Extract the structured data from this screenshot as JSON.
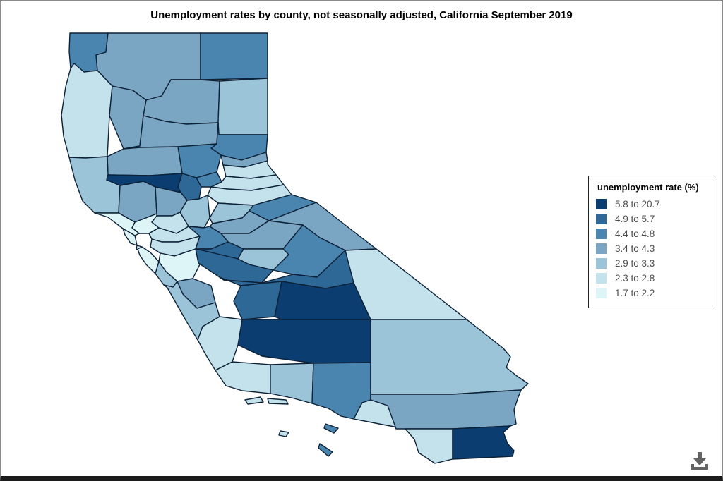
{
  "title": "Unemployment rates by county, not seasonally adjusted, California September 2019",
  "legend": {
    "title": "unemployment rate (%)",
    "items": [
      {
        "label": "5.8 to 20.7",
        "color": "#0b3d70"
      },
      {
        "label": "4.9 to 5.7",
        "color": "#2d6896"
      },
      {
        "label": "4.4 to 4.8",
        "color": "#4a85b0"
      },
      {
        "label": "3.4 to 4.3",
        "color": "#7aa6c4"
      },
      {
        "label": "2.9 to 3.3",
        "color": "#9cc4d8"
      },
      {
        "label": "2.3 to 2.8",
        "color": "#c3e2ec"
      },
      {
        "label": "1.7 to 2.2",
        "color": "#def5f8"
      }
    ]
  },
  "download": {
    "tooltip": "Download",
    "color": "#636363"
  },
  "chart_data": {
    "type": "choropleth",
    "title": "Unemployment rates by county, not seasonally adjusted, California September 2019",
    "region": "California counties",
    "metric": "unemployment rate (%)",
    "legend_position": "right",
    "bins": [
      "5.8 to 20.7",
      "4.9 to 5.7",
      "4.4 to 4.8",
      "3.4 to 4.3",
      "2.9 to 3.3",
      "2.3 to 2.8",
      "1.7 to 2.2"
    ],
    "counties": [
      {
        "id": "del_norte",
        "name": "Del Norte",
        "bin": 2
      },
      {
        "id": "siskiyou",
        "name": "Siskiyou",
        "bin": 3
      },
      {
        "id": "modoc",
        "name": "Modoc",
        "bin": 2
      },
      {
        "id": "humboldt",
        "name": "Humboldt",
        "bin": 5
      },
      {
        "id": "trinity",
        "name": "Trinity",
        "bin": 3
      },
      {
        "id": "shasta",
        "name": "Shasta",
        "bin": 3
      },
      {
        "id": "lassen",
        "name": "Lassen",
        "bin": 4
      },
      {
        "id": "tehama",
        "name": "Tehama",
        "bin": 3
      },
      {
        "id": "plumas",
        "name": "Plumas",
        "bin": 2
      },
      {
        "id": "butte",
        "name": "Butte",
        "bin": 2
      },
      {
        "id": "glenn",
        "name": "Glenn",
        "bin": 3
      },
      {
        "id": "mendocino",
        "name": "Mendocino",
        "bin": 4
      },
      {
        "id": "lake",
        "name": "Lake",
        "bin": 3
      },
      {
        "id": "colusa",
        "name": "Colusa",
        "bin": 0
      },
      {
        "id": "yuba",
        "name": "Yuba",
        "bin": 2
      },
      {
        "id": "sierra",
        "name": "Sierra",
        "bin": 3
      },
      {
        "id": "nevada",
        "name": "Nevada",
        "bin": 5
      },
      {
        "id": "placer",
        "name": "Placer",
        "bin": 5
      },
      {
        "id": "el_dorado",
        "name": "El Dorado",
        "bin": 5
      },
      {
        "id": "sutter",
        "name": "Sutter",
        "bin": 1
      },
      {
        "id": "yolo",
        "name": "Yolo",
        "bin": 3
      },
      {
        "id": "sacramento",
        "name": "Sacramento",
        "bin": 4
      },
      {
        "id": "amador",
        "name": "Amador",
        "bin": 4
      },
      {
        "id": "alpine",
        "name": "Alpine",
        "bin": 2
      },
      {
        "id": "calaveras",
        "name": "Calaveras",
        "bin": 3
      },
      {
        "id": "tuolumne",
        "name": "Tuolumne",
        "bin": 3
      },
      {
        "id": "mono",
        "name": "Mono",
        "bin": 3
      },
      {
        "id": "napa",
        "name": "Napa",
        "bin": 6
      },
      {
        "id": "solano",
        "name": "Solano",
        "bin": 5
      },
      {
        "id": "sonoma",
        "name": "Sonoma",
        "bin": 6
      },
      {
        "id": "marin",
        "name": "Marin",
        "bin": 6
      },
      {
        "id": "contra_costa",
        "name": "Contra Costa",
        "bin": 5
      },
      {
        "id": "san_francisco",
        "name": "San Francisco",
        "bin": 6
      },
      {
        "id": "san_mateo",
        "name": "San Mateo",
        "bin": 6
      },
      {
        "id": "alameda",
        "name": "Alameda",
        "bin": 5
      },
      {
        "id": "santa_clara",
        "name": "Santa Clara",
        "bin": 6
      },
      {
        "id": "santa_cruz",
        "name": "Santa Cruz",
        "bin": 4
      },
      {
        "id": "san_joaquin",
        "name": "San Joaquin",
        "bin": 2
      },
      {
        "id": "stanislaus",
        "name": "Stanislaus",
        "bin": 1
      },
      {
        "id": "merced",
        "name": "Merced",
        "bin": 1
      },
      {
        "id": "mariposa",
        "name": "Mariposa",
        "bin": 4
      },
      {
        "id": "madera",
        "name": "Madera",
        "bin": 2
      },
      {
        "id": "san_benito",
        "name": "San Benito",
        "bin": 3
      },
      {
        "id": "monterey",
        "name": "Monterey",
        "bin": 4
      },
      {
        "id": "fresno",
        "name": "Fresno",
        "bin": 1
      },
      {
        "id": "kings",
        "name": "Kings",
        "bin": 1
      },
      {
        "id": "tulare",
        "name": "Tulare",
        "bin": 0
      },
      {
        "id": "inyo",
        "name": "Inyo",
        "bin": 5
      },
      {
        "id": "kern",
        "name": "Kern",
        "bin": 0
      },
      {
        "id": "san_luis_obispo",
        "name": "San Luis Obispo",
        "bin": 5
      },
      {
        "id": "santa_barbara",
        "name": "Santa Barbara",
        "bin": 5
      },
      {
        "id": "ventura",
        "name": "Ventura",
        "bin": 4
      },
      {
        "id": "los_angeles",
        "name": "Los Angeles",
        "bin": 2
      },
      {
        "id": "san_bernardino",
        "name": "San Bernardino",
        "bin": 4
      },
      {
        "id": "orange",
        "name": "Orange",
        "bin": 5
      },
      {
        "id": "riverside",
        "name": "Riverside",
        "bin": 3
      },
      {
        "id": "san_diego",
        "name": "San Diego",
        "bin": 5
      },
      {
        "id": "imperial",
        "name": "Imperial",
        "bin": 0
      },
      {
        "id": "santa_rosa_island",
        "name": "Santa Rosa Island (Santa Barbara)",
        "bin": 5
      },
      {
        "id": "santa_cruz_island",
        "name": "Santa Cruz Island (Santa Barbara)",
        "bin": 5
      },
      {
        "id": "san_nicolas_island",
        "name": "San Nicolas Island",
        "bin": 5
      },
      {
        "id": "catalina_island",
        "name": "Santa Catalina Island (Los Angeles)",
        "bin": 2
      },
      {
        "id": "san_clemente_island",
        "name": "San Clemente Island (Los Angeles)",
        "bin": 2
      }
    ]
  }
}
